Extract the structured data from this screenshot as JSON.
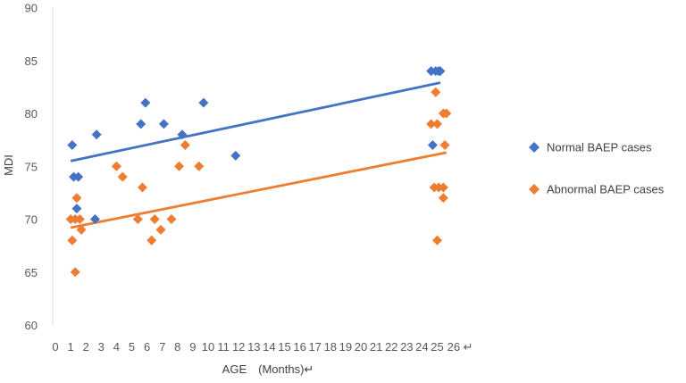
{
  "chart_data": {
    "type": "scatter",
    "title": "",
    "xlabel": "AGE　(Months)↵",
    "ylabel": "MDI",
    "xlim": [
      0,
      26
    ],
    "ylim": [
      60,
      90
    ],
    "x_ticks": [
      "0",
      "1",
      "2",
      "3",
      "4",
      "5",
      "6",
      "7",
      "8",
      "9",
      "10",
      "11",
      "12",
      "13",
      "14",
      "15",
      "16",
      "17",
      "18",
      "19",
      "20",
      "21",
      "22",
      "23",
      "24",
      "25",
      "26 ↵"
    ],
    "y_ticks": [
      60,
      65,
      70,
      75,
      80,
      85,
      90
    ],
    "grid": false,
    "legend_position": "right",
    "series": [
      {
        "name": "Normal BAEP cases",
        "color": "#4472C4",
        "marker": "diamond",
        "points": [
          [
            1.1,
            77
          ],
          [
            1.2,
            74
          ],
          [
            1.5,
            74
          ],
          [
            1.4,
            71
          ],
          [
            2.7,
            78
          ],
          [
            2.6,
            70
          ],
          [
            5.6,
            79
          ],
          [
            5.9,
            81
          ],
          [
            7.1,
            79
          ],
          [
            8.3,
            78
          ],
          [
            9.7,
            81
          ],
          [
            11.8,
            76
          ],
          [
            24.6,
            84
          ],
          [
            24.9,
            84
          ],
          [
            25.1,
            84
          ],
          [
            25.2,
            84
          ],
          [
            24.7,
            77
          ]
        ],
        "trendline": {
          "x": [
            1,
            25.2
          ],
          "y": [
            75.5,
            82.9
          ]
        }
      },
      {
        "name": "Abnormal BAEP cases",
        "color": "#ED7D31",
        "marker": "diamond",
        "points": [
          [
            1.0,
            70
          ],
          [
            1.1,
            68
          ],
          [
            1.3,
            70
          ],
          [
            1.4,
            72
          ],
          [
            1.6,
            70
          ],
          [
            1.7,
            69
          ],
          [
            1.3,
            65
          ],
          [
            4.0,
            75
          ],
          [
            4.4,
            74
          ],
          [
            5.4,
            70
          ],
          [
            5.7,
            73
          ],
          [
            6.5,
            70
          ],
          [
            6.3,
            68
          ],
          [
            6.9,
            69
          ],
          [
            7.6,
            70
          ],
          [
            8.1,
            75
          ],
          [
            8.5,
            77
          ],
          [
            9.4,
            75
          ],
          [
            24.6,
            79
          ],
          [
            24.9,
            82
          ],
          [
            25.0,
            79
          ],
          [
            24.8,
            73
          ],
          [
            25.1,
            73
          ],
          [
            25.4,
            73
          ],
          [
            25.4,
            80
          ],
          [
            25.6,
            80
          ],
          [
            25.5,
            77
          ],
          [
            25.4,
            72
          ],
          [
            25.0,
            68
          ]
        ],
        "trendline": {
          "x": [
            1,
            25.6
          ],
          "y": [
            69.2,
            76.3
          ]
        }
      }
    ]
  }
}
